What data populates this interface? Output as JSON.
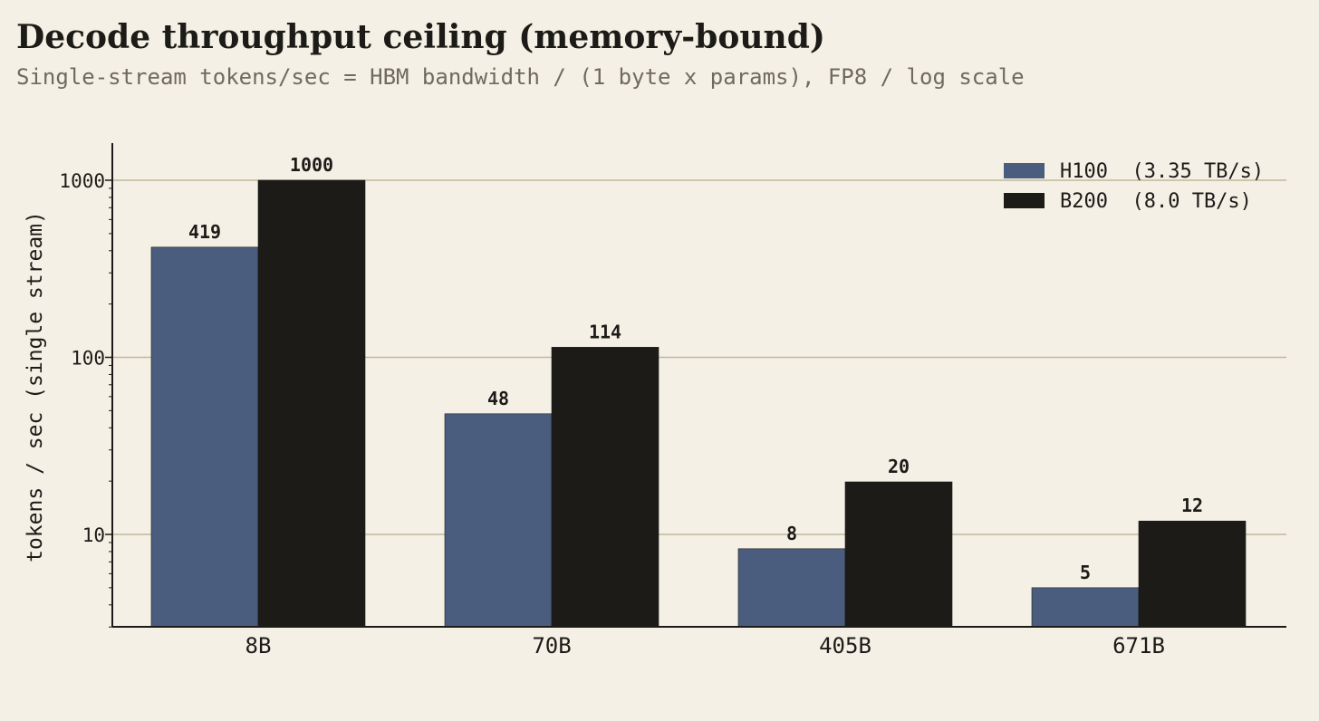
{
  "chart_data": {
    "type": "bar",
    "title": "Decode throughput ceiling (memory-bound)",
    "subtitle": "Single-stream tokens/sec = HBM bandwidth / (1 byte x params), FP8 / log scale",
    "xlabel": "",
    "ylabel": "tokens / sec  (single stream)",
    "yscale": "log",
    "ylim": [
      3,
      1650
    ],
    "yticks": [
      {
        "value": 10,
        "label": "10"
      },
      {
        "value": 100,
        "label": "100"
      },
      {
        "value": 1000,
        "label": "1000"
      }
    ],
    "categories": [
      "8B",
      "70B",
      "405B",
      "671B"
    ],
    "series": [
      {
        "name": "H100  (3.35 TB/s)",
        "color": "#4b5d7e",
        "values": [
          419,
          48,
          8.3,
          5
        ],
        "labels": [
          "419",
          "48",
          "8",
          "5"
        ]
      },
      {
        "name": "B200  (8.0 TB/s)",
        "color": "#1c1b17",
        "values": [
          1000,
          114,
          19.8,
          11.9
        ],
        "labels": [
          "1000",
          "114",
          "20",
          "12"
        ]
      }
    ],
    "grid": "horizontal major",
    "legend": "top-right"
  },
  "colors": {
    "background": "#f5f0e6",
    "gridline": "#bfb79c",
    "axis": "#1c1b17",
    "text": "#1c1b17",
    "subtitle": "#6f6a60"
  }
}
